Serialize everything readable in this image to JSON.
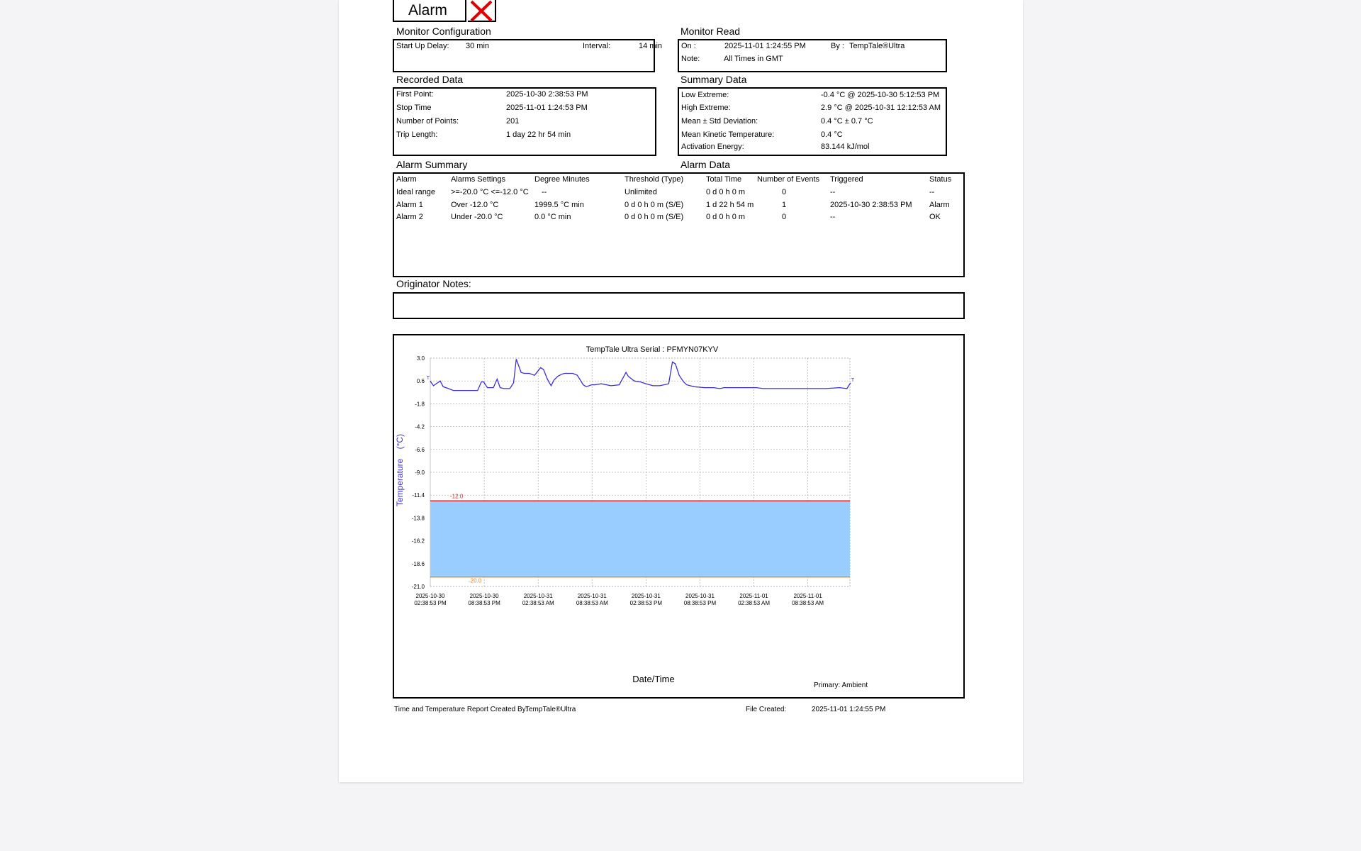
{
  "header": {
    "alarm_label": "Alarm"
  },
  "monitor_configuration": {
    "title": "Monitor Configuration",
    "start_up_delay_label": "Start Up Delay:",
    "start_up_delay": "30 min",
    "interval_label": "Interval:",
    "interval": "14 min"
  },
  "monitor_read": {
    "title": "Monitor Read",
    "on_label": "On :",
    "on": "2025-11-01  1:24:55 PM",
    "by_label": "By :",
    "by": "TempTale®Ultra",
    "note_label": "Note:",
    "note": "All Times in GMT"
  },
  "recorded_data": {
    "title": "Recorded Data",
    "rows": [
      {
        "label": "First Point:",
        "value": "2025-10-30  2:38:53 PM"
      },
      {
        "label": "Stop Time",
        "value": "2025-11-01  1:24:53 PM"
      },
      {
        "label": "Number of Points:",
        "value": "201"
      },
      {
        "label": "Trip Length:",
        "value": "1 day 22 hr 54 min"
      }
    ]
  },
  "summary_data": {
    "title": "Summary Data",
    "rows": [
      {
        "label": "Low Extreme:",
        "value": "-0.4 °C @ 2025-10-30  5:12:53 PM"
      },
      {
        "label": "High Extreme:",
        "value": "2.9 °C @ 2025-10-31 12:12:53 AM"
      },
      {
        "label": "Mean ± Std Deviation:",
        "value": "0.4 °C ± 0.7 °C"
      },
      {
        "label": "Mean Kinetic Temperature:",
        "value": "0.4 °C"
      },
      {
        "label": "Activation Energy:",
        "value": "83.144 kJ/mol"
      }
    ]
  },
  "alarm_summary": {
    "title": "Alarm Summary",
    "data_title": "Alarm Data",
    "headers": [
      "Alarm",
      "Alarms Settings",
      "Degree Minutes",
      "Threshold (Type)",
      "Total Time",
      "Number of Events",
      "Triggered",
      "Status"
    ],
    "rows": [
      [
        "Ideal range",
        ">=-20.0 °C <=-12.0 °C",
        "--",
        "Unlimited",
        "0 d 0 h 0 m",
        "0",
        "--",
        "--"
      ],
      [
        "Alarm 1",
        "Over -12.0 °C",
        "1999.5 °C min",
        "0 d 0 h 0 m (S/E)",
        "1 d 22 h 54 m",
        "1",
        "2025-10-30  2:38:53 PM",
        "Alarm"
      ],
      [
        "Alarm 2",
        "Under -20.0 °C",
        "0.0 °C min",
        "0 d 0 h 0 m (S/E)",
        "0 d 0 h 0 m",
        "0",
        "--",
        "OK"
      ]
    ]
  },
  "originator_notes": {
    "title": "Originator Notes:",
    "text": ""
  },
  "chart_data": {
    "type": "line",
    "title": "TempTale Ultra  Serial : PFMYN07KYV",
    "xlabel": "Date/Time",
    "ylabel": "Temperature    (°C)",
    "ylim": [
      -21.0,
      3.0
    ],
    "y_ticks": [
      "3.0",
      "0.6",
      "-1.8",
      "-4.2",
      "-6.6",
      "-9.0",
      "-11.4",
      "-13.8",
      "-16.2",
      "-18.6",
      "-21.0"
    ],
    "x_ticks": [
      [
        "2025-10-30",
        "02:38:53 PM"
      ],
      [
        "2025-10-30",
        "08:38:53 PM"
      ],
      [
        "2025-10-31",
        "02:38:53 AM"
      ],
      [
        "2025-10-31",
        "08:38:53 AM"
      ],
      [
        "2025-10-31",
        "02:38:53 PM"
      ],
      [
        "2025-10-31",
        "08:38:53 PM"
      ],
      [
        "2025-11-01",
        "02:38:53 AM"
      ],
      [
        "2025-11-01",
        "08:38:53 AM"
      ]
    ],
    "x_start": "2025-10-30 14:38:53",
    "x_step_hours": 6,
    "grid": true,
    "upper_threshold": {
      "value": -12.0,
      "label": "-12.0",
      "color": "#d9262b"
    },
    "lower_threshold": {
      "value": -20.0,
      "label": "-20.0",
      "color": "#e08a2c"
    },
    "band_color": "#99ccff",
    "line_color": "#3b2fd6",
    "marker_label": "T",
    "legend": "Primary: Ambient",
    "series": [
      {
        "x": [
          "2025-10-30 14:38",
          "2025-10-30 15:00",
          "2025-10-30 15:45",
          "2025-10-30 16:05",
          "2025-10-30 16:40",
          "2025-10-30 17:13",
          "2025-10-30 18:30",
          "2025-10-30 19:55",
          "2025-10-30 20:20",
          "2025-10-30 20:35",
          "2025-10-30 21:00",
          "2025-10-30 21:40",
          "2025-10-30 22:05",
          "2025-10-30 22:25",
          "2025-10-30 22:50",
          "2025-10-30 23:30",
          "2025-10-30 23:55",
          "2025-10-31 00:13",
          "2025-10-31 00:45",
          "2025-10-31 01:05",
          "2025-10-31 01:40",
          "2025-10-31 02:15",
          "2025-10-31 02:55",
          "2025-10-31 03:15",
          "2025-10-31 03:40",
          "2025-10-31 04:05",
          "2025-10-31 04:25",
          "2025-10-31 04:50",
          "2025-10-31 05:15",
          "2025-10-31 05:35",
          "2025-10-31 06:30",
          "2025-10-31 07:00",
          "2025-10-31 07:40",
          "2025-10-31 08:00",
          "2025-10-31 08:35",
          "2025-10-31 08:55",
          "2025-10-31 09:40",
          "2025-10-31 10:15",
          "2025-10-31 10:45",
          "2025-10-31 11:40",
          "2025-10-31 12:25",
          "2025-10-31 12:40",
          "2025-10-31 13:20",
          "2025-10-31 14:00",
          "2025-10-31 14:40",
          "2025-10-31 15:25",
          "2025-10-31 16:10",
          "2025-10-31 17:10",
          "2025-10-31 17:35",
          "2025-10-31 17:55",
          "2025-10-31 18:20",
          "2025-10-31 18:50",
          "2025-10-31 19:10",
          "2025-10-31 20:00",
          "2025-10-31 21:10",
          "2025-10-31 22:10",
          "2025-10-31 22:50",
          "2025-10-31 23:20",
          "2025-11-01 00:10",
          "2025-11-01 01:10",
          "2025-11-01 02:10",
          "2025-11-01 02:55",
          "2025-11-01 03:40",
          "2025-11-01 05:10",
          "2025-11-01 07:40",
          "2025-11-01 10:40",
          "2025-11-01 12:10",
          "2025-11-01 13:00",
          "2025-11-01 13:24"
        ],
        "y": [
          0.6,
          0.1,
          0.6,
          0.0,
          -0.2,
          -0.4,
          -0.4,
          -0.4,
          0.5,
          0.5,
          -0.1,
          -0.1,
          0.8,
          -0.1,
          -0.2,
          -0.2,
          0.4,
          2.9,
          1.5,
          1.4,
          1.4,
          1.2,
          2.0,
          1.8,
          0.8,
          0.1,
          0.7,
          1.1,
          1.3,
          1.4,
          1.4,
          1.2,
          0.2,
          0.0,
          0.2,
          0.2,
          0.3,
          0.2,
          0.1,
          0.2,
          1.5,
          1.1,
          0.6,
          0.5,
          0.3,
          0.1,
          0.1,
          0.3,
          2.6,
          2.4,
          1.2,
          0.5,
          0.2,
          0.0,
          -0.1,
          -0.1,
          -0.2,
          -0.1,
          -0.1,
          -0.1,
          -0.1,
          -0.1,
          -0.2,
          -0.2,
          -0.2,
          -0.2,
          -0.1,
          -0.2,
          0.4
        ]
      }
    ]
  },
  "footer": {
    "created_by_label": "Time and Temperature Report Created By:",
    "created_by": "TempTale®Ultra",
    "file_created_label": "File Created:",
    "file_created": "2025-11-01  1:24:55 PM"
  }
}
